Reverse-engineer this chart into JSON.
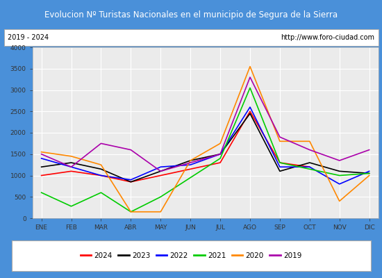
{
  "title": "Evolucion Nº Turistas Nacionales en el municipio de Segura de la Sierra",
  "subtitle_left": "2019 - 2024",
  "subtitle_right": "http://www.foro-ciudad.com",
  "months": [
    "ENE",
    "FEB",
    "MAR",
    "ABR",
    "MAY",
    "JUN",
    "JUL",
    "AGO",
    "SEP",
    "OCT",
    "NOV",
    "DIC"
  ],
  "ylim": [
    0,
    4000
  ],
  "yticks": [
    0,
    500,
    1000,
    1500,
    2000,
    2500,
    3000,
    3500,
    4000
  ],
  "series": {
    "2024": {
      "color": "#ff0000",
      "values": [
        1000,
        1100,
        1000,
        850,
        1000,
        1150,
        1300,
        2500,
        1300,
        1200,
        null,
        null
      ]
    },
    "2023": {
      "color": "#000000",
      "values": [
        1200,
        1300,
        1150,
        850,
        1100,
        1350,
        1500,
        2450,
        1100,
        1300,
        1100,
        1050
      ]
    },
    "2022": {
      "color": "#0000ff",
      "values": [
        1400,
        1200,
        1000,
        900,
        1200,
        1250,
        1500,
        2600,
        1200,
        1200,
        800,
        1100
      ]
    },
    "2021": {
      "color": "#00cc00",
      "values": [
        600,
        280,
        600,
        150,
        500,
        950,
        1400,
        3050,
        1300,
        1150,
        1000,
        1050
      ]
    },
    "2020": {
      "color": "#ff8800",
      "values": [
        1550,
        1450,
        1250,
        150,
        150,
        1350,
        1750,
        3550,
        1800,
        1800,
        400,
        1000
      ]
    },
    "2019": {
      "color": "#aa00aa",
      "values": [
        1500,
        1200,
        1750,
        1600,
        1100,
        1300,
        1500,
        3300,
        1900,
        1600,
        1350,
        1600
      ]
    }
  },
  "legend_order": [
    "2024",
    "2023",
    "2022",
    "2021",
    "2020",
    "2019"
  ],
  "title_bg_color": "#4a90d9",
  "title_text_color": "#ffffff",
  "plot_bg_color": "#ebebeb",
  "subtitle_bg_color": "#ffffff",
  "grid_color": "#ffffff",
  "outer_bg_color": "#4a90d9"
}
